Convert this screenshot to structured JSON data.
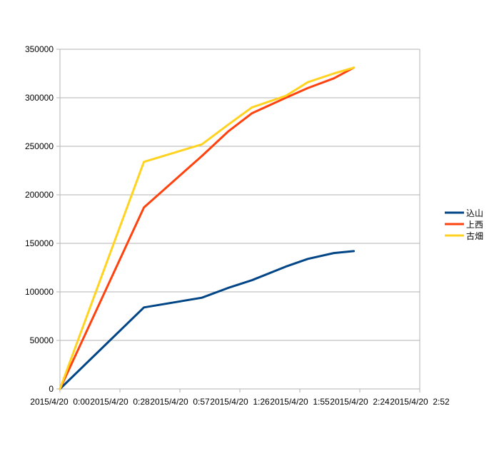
{
  "chart_data": {
    "type": "line",
    "title": "",
    "xlabel": "",
    "ylabel": "",
    "ylim": [
      0,
      350000
    ],
    "y_ticks": [
      0,
      50000,
      100000,
      150000,
      200000,
      250000,
      300000,
      350000
    ],
    "y_tick_labels": [
      "0",
      "50000",
      "100000",
      "150000",
      "200000",
      "250000",
      "300000",
      "350000"
    ],
    "x_tick_labels": [
      "2015/4/20  0:00",
      "2015/4/20  0:28",
      "2015/4/20  0:57",
      "2015/4/20  1:26",
      "2015/4/20  1:55",
      "2015/4/20  2:24",
      "2015/4/20  2:52"
    ],
    "xlim": [
      "2015/4/20 0:00",
      "2015/4/20 3:00"
    ],
    "grid": true,
    "legend_position": "right",
    "x": [
      "2015/4/20 0:00",
      "2015/4/20 0:42",
      "2015/4/20 1:11",
      "2015/4/20 1:24",
      "2015/4/20 1:36",
      "2015/4/20 1:53",
      "2015/4/20 2:04",
      "2015/4/20 2:17",
      "2015/4/20 2:27"
    ],
    "series": [
      {
        "name": "込山",
        "color": "#004586",
        "values": [
          0,
          84000,
          94000,
          104000,
          112000,
          126000,
          134000,
          140000,
          142000
        ]
      },
      {
        "name": "上西",
        "color": "#ff420e",
        "values": [
          0,
          187000,
          240000,
          265000,
          284000,
          300000,
          310000,
          320000,
          331000
        ]
      },
      {
        "name": "古畑",
        "color": "#ffd320",
        "values": [
          0,
          234000,
          252000,
          272000,
          290000,
          302000,
          316000,
          325000,
          331000
        ]
      }
    ]
  }
}
